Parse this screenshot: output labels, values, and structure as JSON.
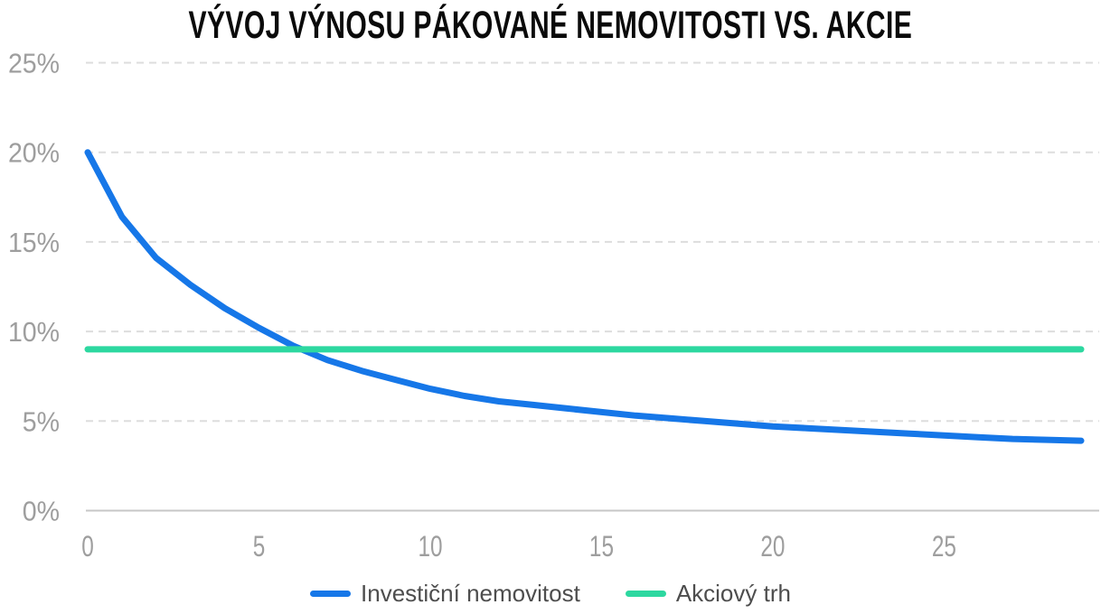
{
  "title": "VÝVOJ VÝNOSU PÁKOVANÉ NEMOVITOSTI VS. AKCIE",
  "colors": {
    "property_line": "#1677e8",
    "stock_line": "#2dd8a0",
    "grid_line": "#dddddd",
    "baseline": "#c7c7c7",
    "tick_label": "#9e9e9e",
    "legend_label": "#4d4d4d",
    "title_text": "#0a0a0a"
  },
  "legend": {
    "items": [
      {
        "label": "Investiční nemovitost",
        "color": "#1677e8"
      },
      {
        "label": "Akciový trh",
        "color": "#2dd8a0"
      }
    ]
  },
  "chart_data": {
    "type": "line",
    "title": "VÝVOJ VÝNOSU PÁKOVANÉ NEMOVITOSTI VS. AKCIE",
    "x": [
      0,
      1,
      2,
      3,
      4,
      5,
      6,
      7,
      8,
      9,
      10,
      11,
      12,
      13,
      14,
      15,
      16,
      17,
      18,
      19,
      20,
      21,
      22,
      23,
      24,
      25,
      26,
      27,
      28,
      29
    ],
    "series": [
      {
        "name": "Investiční nemovitost",
        "color": "#1677e8",
        "values": [
          20.0,
          16.4,
          14.1,
          12.6,
          11.3,
          10.2,
          9.2,
          8.4,
          7.8,
          7.3,
          6.8,
          6.4,
          6.1,
          5.9,
          5.7,
          5.5,
          5.3,
          5.15,
          5.0,
          4.85,
          4.7,
          4.6,
          4.5,
          4.4,
          4.3,
          4.2,
          4.1,
          4.0,
          3.95,
          3.9
        ]
      },
      {
        "name": "Akciový trh",
        "color": "#2dd8a0",
        "values": [
          9,
          9,
          9,
          9,
          9,
          9,
          9,
          9,
          9,
          9,
          9,
          9,
          9,
          9,
          9,
          9,
          9,
          9,
          9,
          9,
          9,
          9,
          9,
          9,
          9,
          9,
          9,
          9,
          9,
          9
        ]
      }
    ],
    "xlabel": "",
    "ylabel": "",
    "xlim": [
      0,
      29
    ],
    "ylim": [
      0,
      25
    ],
    "xticks": [
      {
        "value": 0,
        "label": "0"
      },
      {
        "value": 5,
        "label": "5"
      },
      {
        "value": 10,
        "label": "10"
      },
      {
        "value": 15,
        "label": "15"
      },
      {
        "value": 20,
        "label": "20"
      },
      {
        "value": 25,
        "label": "25"
      }
    ],
    "yticks": [
      {
        "value": 0,
        "label": "0%"
      },
      {
        "value": 5,
        "label": "5%"
      },
      {
        "value": 10,
        "label": "10%"
      },
      {
        "value": 15,
        "label": "15%"
      },
      {
        "value": 20,
        "label": "20%"
      },
      {
        "value": 25,
        "label": "25%"
      }
    ],
    "grid": "horizontal-dashed",
    "legend_position": "bottom"
  }
}
